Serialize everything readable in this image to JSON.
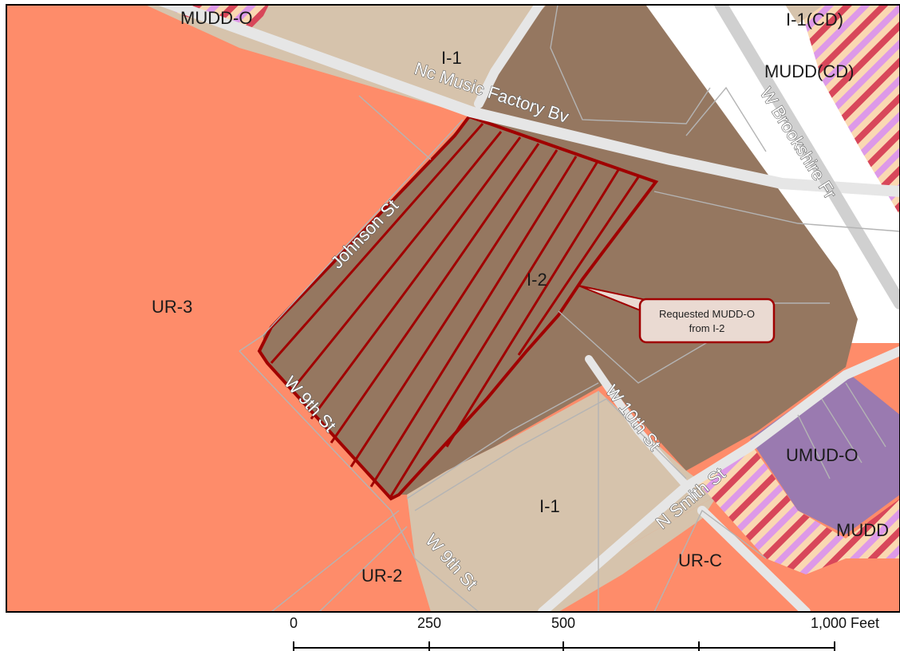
{
  "map": {
    "title_fragment": "",
    "zones": {
      "mudd_o_top": "MUDD-O",
      "i1_top": "I-1",
      "i1cd": "I-1(CD)",
      "muddcd": "MUDD(CD)",
      "ur3": "UR-3",
      "i2": "I-2",
      "umud_o": "UMUD-O",
      "mudd_right": "MUDD",
      "i1_bottom": "I-1",
      "urc": "UR-C",
      "ur2": "UR-2"
    },
    "roads": {
      "music_factory": "Nc Music Factory Bv",
      "brookshire": "W Brookshire Fr",
      "johnson": "Johnson St",
      "w9th_upper": "W 9th St",
      "w9th_lower": "W 9th St",
      "w10th": "W 10th St",
      "n_smith": "N Smith St"
    },
    "callout": {
      "line1": "Requested MUDD-O",
      "line2": "from I-2"
    },
    "scale_bar": {
      "labels": [
        "0",
        "250",
        "500",
        "1,000 Feet"
      ]
    },
    "colors": {
      "ur_residential": "#FE8C6A",
      "industrial_light": "#D6C3AC",
      "industrial_heavy": "#957760",
      "mixed_use_purple": "#9A7AB0",
      "hatch_pink": "#DD99E8",
      "hatch_red": "#D8475A",
      "hatch_cream": "#FAD8B2",
      "subject_outline": "#A00000",
      "callout_bg": "#EADAD2"
    }
  }
}
